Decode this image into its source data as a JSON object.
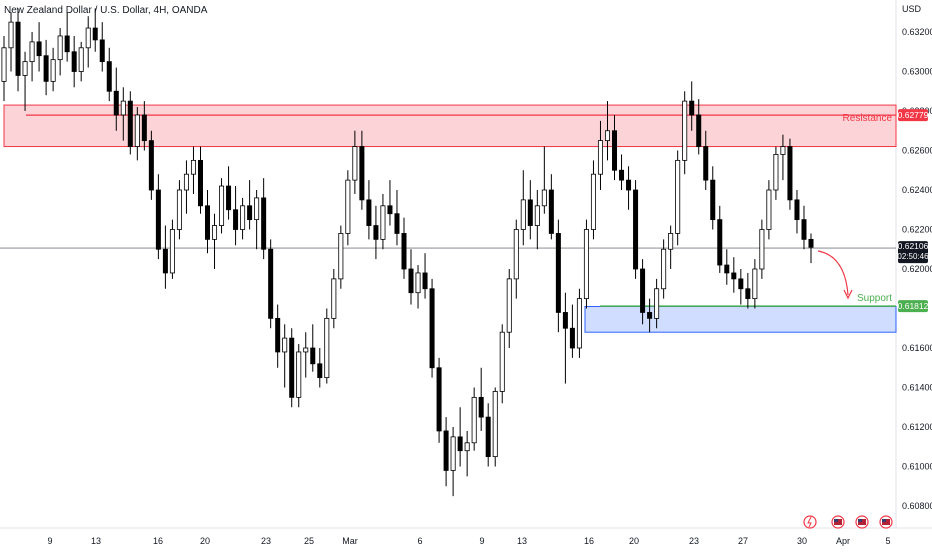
{
  "header": {
    "symbol_line": "New Zealand Dollar / U.S. Dollar, 4H, OANDA"
  },
  "colors": {
    "up_candle": "#ffffff",
    "down_candle": "#000000",
    "resistance_zone": "#f23645",
    "support_zone": "#2962ff",
    "support_line": "#4caf50",
    "current_price": "#131722",
    "projection_arrow": "#f23645"
  },
  "chart_data": {
    "type": "candlestick",
    "title": "New Zealand Dollar / U.S. Dollar, 4H, OANDA",
    "currency": "USD",
    "y_range": [
      0.607,
      0.634
    ],
    "y_ticks": [
      "0.63200",
      "0.63000",
      "0.62800",
      "0.62600",
      "0.62400",
      "0.62200",
      "0.62000",
      "0.61600",
      "0.61400",
      "0.61200",
      "0.61000",
      "0.60800"
    ],
    "x_ticks": [
      "9",
      "13",
      "16",
      "20",
      "23",
      "25",
      "Mar",
      "6",
      "9",
      "13",
      "16",
      "20",
      "23",
      "27",
      "30",
      "Apr",
      "5"
    ],
    "grid": false,
    "resistance": {
      "label": "Resistance",
      "price": "0.62779",
      "zone": [
        0.6262,
        0.6283
      ],
      "line": 0.62779
    },
    "support": {
      "label": "Support",
      "price": "0.61812",
      "zone": [
        0.6168,
        0.6181
      ],
      "line": 0.61812
    },
    "current": {
      "price": "0.62106",
      "countdown": "02:50:46",
      "value": 0.62106
    },
    "candles": [
      [
        0.6295,
        0.6318,
        0.6285,
        0.6312
      ],
      [
        0.6312,
        0.633,
        0.63,
        0.6325
      ],
      [
        0.6325,
        0.6332,
        0.629,
        0.6298
      ],
      [
        0.6298,
        0.631,
        0.628,
        0.6305
      ],
      [
        0.6305,
        0.632,
        0.6295,
        0.6315
      ],
      [
        0.6315,
        0.6325,
        0.63,
        0.6308
      ],
      [
        0.6308,
        0.6316,
        0.6288,
        0.6295
      ],
      [
        0.6295,
        0.6312,
        0.629,
        0.6306
      ],
      [
        0.6306,
        0.6322,
        0.6298,
        0.6318
      ],
      [
        0.6318,
        0.633,
        0.6305,
        0.631
      ],
      [
        0.631,
        0.6318,
        0.6292,
        0.63
      ],
      [
        0.63,
        0.6315,
        0.6295,
        0.6312
      ],
      [
        0.6312,
        0.6328,
        0.6302,
        0.6322
      ],
      [
        0.6322,
        0.6332,
        0.631,
        0.6316
      ],
      [
        0.6316,
        0.6325,
        0.63,
        0.6305
      ],
      [
        0.6305,
        0.6312,
        0.6285,
        0.629
      ],
      [
        0.629,
        0.6302,
        0.627,
        0.6278
      ],
      [
        0.6278,
        0.6292,
        0.6265,
        0.6285
      ],
      [
        0.6285,
        0.629,
        0.6258,
        0.6262
      ],
      [
        0.6262,
        0.6282,
        0.6255,
        0.6278
      ],
      [
        0.6278,
        0.6285,
        0.626,
        0.6265
      ],
      [
        0.6265,
        0.627,
        0.6235,
        0.624
      ],
      [
        0.624,
        0.6248,
        0.6205,
        0.621
      ],
      [
        0.621,
        0.6222,
        0.619,
        0.6198
      ],
      [
        0.6198,
        0.6225,
        0.6195,
        0.622
      ],
      [
        0.622,
        0.6245,
        0.6215,
        0.624
      ],
      [
        0.624,
        0.6255,
        0.6228,
        0.6248
      ],
      [
        0.6248,
        0.6262,
        0.6238,
        0.6255
      ],
      [
        0.6255,
        0.6262,
        0.6228,
        0.6232
      ],
      [
        0.6232,
        0.624,
        0.6208,
        0.6215
      ],
      [
        0.6215,
        0.6228,
        0.62,
        0.6222
      ],
      [
        0.6222,
        0.6246,
        0.6218,
        0.6242
      ],
      [
        0.6242,
        0.6252,
        0.6225,
        0.623
      ],
      [
        0.623,
        0.6242,
        0.6212,
        0.622
      ],
      [
        0.622,
        0.6236,
        0.6215,
        0.6232
      ],
      [
        0.6232,
        0.6245,
        0.622,
        0.6225
      ],
      [
        0.6225,
        0.624,
        0.621,
        0.6236
      ],
      [
        0.6236,
        0.6246,
        0.6205,
        0.621
      ],
      [
        0.621,
        0.6215,
        0.617,
        0.6175
      ],
      [
        0.6175,
        0.6182,
        0.615,
        0.6158
      ],
      [
        0.6158,
        0.6172,
        0.614,
        0.6165
      ],
      [
        0.6165,
        0.617,
        0.613,
        0.6135
      ],
      [
        0.6135,
        0.6162,
        0.613,
        0.6158
      ],
      [
        0.6158,
        0.6168,
        0.6145,
        0.616
      ],
      [
        0.616,
        0.6172,
        0.6148,
        0.6152
      ],
      [
        0.6152,
        0.616,
        0.614,
        0.6145
      ],
      [
        0.6145,
        0.618,
        0.6142,
        0.6175
      ],
      [
        0.6175,
        0.62,
        0.617,
        0.6195
      ],
      [
        0.6195,
        0.6222,
        0.619,
        0.6218
      ],
      [
        0.6218,
        0.625,
        0.6212,
        0.6245
      ],
      [
        0.6245,
        0.627,
        0.6238,
        0.6262
      ],
      [
        0.6262,
        0.627,
        0.623,
        0.6235
      ],
      [
        0.6235,
        0.6245,
        0.6215,
        0.6222
      ],
      [
        0.6222,
        0.6232,
        0.6205,
        0.6215
      ],
      [
        0.6215,
        0.6238,
        0.621,
        0.6232
      ],
      [
        0.6232,
        0.6245,
        0.6222,
        0.6228
      ],
      [
        0.6228,
        0.624,
        0.6212,
        0.6218
      ],
      [
        0.6218,
        0.6226,
        0.6195,
        0.62
      ],
      [
        0.62,
        0.621,
        0.6182,
        0.6188
      ],
      [
        0.6188,
        0.6202,
        0.618,
        0.6198
      ],
      [
        0.6198,
        0.6208,
        0.6185,
        0.619
      ],
      [
        0.619,
        0.6195,
        0.6145,
        0.615
      ],
      [
        0.615,
        0.6155,
        0.6112,
        0.6118
      ],
      [
        0.6118,
        0.6125,
        0.609,
        0.6098
      ],
      [
        0.6098,
        0.612,
        0.6085,
        0.6115
      ],
      [
        0.6115,
        0.613,
        0.61,
        0.6108
      ],
      [
        0.6108,
        0.6118,
        0.6095,
        0.6112
      ],
      [
        0.6112,
        0.614,
        0.6108,
        0.6135
      ],
      [
        0.6135,
        0.615,
        0.6118,
        0.6125
      ],
      [
        0.6125,
        0.6132,
        0.61,
        0.6105
      ],
      [
        0.6105,
        0.614,
        0.61,
        0.6138
      ],
      [
        0.6138,
        0.6172,
        0.6132,
        0.6168
      ],
      [
        0.6168,
        0.62,
        0.616,
        0.6195
      ],
      [
        0.6195,
        0.6225,
        0.6185,
        0.622
      ],
      [
        0.622,
        0.625,
        0.6212,
        0.6235
      ],
      [
        0.6235,
        0.6245,
        0.6215,
        0.6222
      ],
      [
        0.6222,
        0.624,
        0.621,
        0.6232
      ],
      [
        0.6232,
        0.6262,
        0.6228,
        0.624
      ],
      [
        0.624,
        0.6248,
        0.6215,
        0.6218
      ],
      [
        0.6218,
        0.6225,
        0.6168,
        0.6178
      ],
      [
        0.6178,
        0.6188,
        0.6142,
        0.617
      ],
      [
        0.617,
        0.6182,
        0.6155,
        0.616
      ],
      [
        0.616,
        0.619,
        0.6155,
        0.6185
      ],
      [
        0.6185,
        0.6225,
        0.618,
        0.622
      ],
      [
        0.622,
        0.6255,
        0.6215,
        0.6248
      ],
      [
        0.6248,
        0.6275,
        0.624,
        0.6265
      ],
      [
        0.6265,
        0.6285,
        0.6255,
        0.627
      ],
      [
        0.627,
        0.6278,
        0.6245,
        0.625
      ],
      [
        0.625,
        0.6258,
        0.624,
        0.6245
      ],
      [
        0.6245,
        0.6252,
        0.623,
        0.624
      ],
      [
        0.624,
        0.6245,
        0.6195,
        0.62
      ],
      [
        0.62,
        0.6205,
        0.6172,
        0.6178
      ],
      [
        0.6178,
        0.6185,
        0.6168,
        0.6175
      ],
      [
        0.6175,
        0.6195,
        0.617,
        0.619
      ],
      [
        0.619,
        0.6215,
        0.6185,
        0.621
      ],
      [
        0.621,
        0.6222,
        0.62,
        0.6218
      ],
      [
        0.6218,
        0.626,
        0.6212,
        0.6255
      ],
      [
        0.6255,
        0.629,
        0.6248,
        0.6285
      ],
      [
        0.6285,
        0.6295,
        0.627,
        0.6278
      ],
      [
        0.6278,
        0.6286,
        0.6258,
        0.6262
      ],
      [
        0.6262,
        0.627,
        0.624,
        0.6245
      ],
      [
        0.6245,
        0.6252,
        0.622,
        0.6225
      ],
      [
        0.6225,
        0.6232,
        0.6198,
        0.6202
      ],
      [
        0.6202,
        0.621,
        0.6192,
        0.6198
      ],
      [
        0.6198,
        0.6206,
        0.6188,
        0.6195
      ],
      [
        0.6195,
        0.62,
        0.6182,
        0.619
      ],
      [
        0.619,
        0.6198,
        0.618,
        0.6185
      ],
      [
        0.6185,
        0.6205,
        0.618,
        0.62
      ],
      [
        0.62,
        0.6225,
        0.6195,
        0.622
      ],
      [
        0.622,
        0.6245,
        0.6215,
        0.624
      ],
      [
        0.624,
        0.6262,
        0.6235,
        0.6258
      ],
      [
        0.6258,
        0.6268,
        0.6245,
        0.6262
      ],
      [
        0.6262,
        0.6266,
        0.623,
        0.6235
      ],
      [
        0.6235,
        0.624,
        0.6218,
        0.6225
      ],
      [
        0.6225,
        0.6232,
        0.621,
        0.6215
      ],
      [
        0.6215,
        0.6218,
        0.6203,
        0.6211
      ]
    ]
  },
  "footer_icons": [
    "lightning-event-icon",
    "us-flag-event-icon",
    "us-flag-event-icon",
    "us-flag-event-icon"
  ]
}
